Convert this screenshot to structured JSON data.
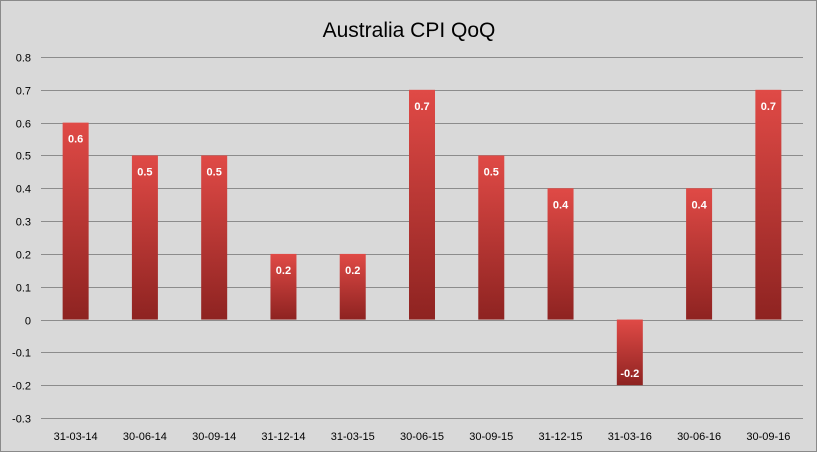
{
  "chart_data": {
    "type": "bar",
    "title": "Australia CPI QoQ",
    "categories": [
      "31-03-14",
      "30-06-14",
      "30-09-14",
      "31-12-14",
      "31-03-15",
      "30-06-15",
      "30-09-15",
      "31-12-15",
      "31-03-16",
      "30-06-16",
      "30-09-16"
    ],
    "values": [
      0.6,
      0.5,
      0.5,
      0.2,
      0.2,
      0.7,
      0.5,
      0.4,
      -0.2,
      0.4,
      0.7
    ],
    "data_labels": [
      "0.6",
      "0.5",
      "0.5",
      "0.2",
      "0.2",
      "0.7",
      "0.5",
      "0.4",
      "-0.2",
      "0.4",
      "0.7"
    ],
    "ylim": [
      -0.3,
      0.8
    ],
    "yticks": [
      -0.3,
      -0.2,
      -0.1,
      0,
      0.1,
      0.2,
      0.3,
      0.4,
      0.5,
      0.6,
      0.7,
      0.8
    ],
    "ytick_labels": [
      "-0.3",
      "-0.2",
      "-0.1",
      "0",
      "0.1",
      "0.2",
      "0.3",
      "0.4",
      "0.5",
      "0.6",
      "0.7",
      "0.8"
    ],
    "grid": true,
    "legend": "none",
    "colors": {
      "background": "#d9d9d9",
      "gridline": "#8c8c8c",
      "bar_light": "#e04a46",
      "bar_dark": "#8e2321"
    }
  }
}
